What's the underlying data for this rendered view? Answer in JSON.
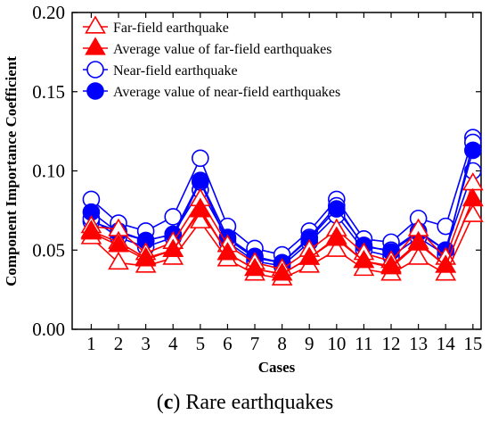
{
  "caption": {
    "letter": "c",
    "text": " Rare earthquakes"
  },
  "chart_data": {
    "type": "line",
    "xlabel": "Cases",
    "ylabel": "Component Importance Coefficient",
    "x": [
      1,
      2,
      3,
      4,
      5,
      6,
      7,
      8,
      9,
      10,
      11,
      12,
      13,
      14,
      15
    ],
    "xlim": [
      0.3,
      15.3
    ],
    "ylim": [
      0.0,
      0.2
    ],
    "yticks": [
      "0.00",
      "0.05",
      "0.10",
      "0.15",
      "0.20"
    ],
    "grid": false,
    "legend_position": "top-left",
    "legend": [
      {
        "label": "Far-field earthquake",
        "color": "#ff0000",
        "marker": "triangle-open"
      },
      {
        "label": "Average value of far-field earthquakes",
        "color": "#ff0000",
        "marker": "triangle-filled"
      },
      {
        "label": "Near-field earthquake",
        "color": "#0000ff",
        "marker": "circle-open"
      },
      {
        "label": "Average value of near-field earthquakes",
        "color": "#0000ff",
        "marker": "circle-filled"
      }
    ],
    "series": [
      {
        "group": "far",
        "kind": "individual",
        "color": "#ff0000",
        "marker": "triangle-open",
        "values": [
          0.065,
          0.063,
          0.048,
          0.055,
          0.082,
          0.053,
          0.042,
          0.038,
          0.05,
          0.063,
          0.048,
          0.043,
          0.063,
          0.045,
          0.092
        ]
      },
      {
        "group": "far",
        "kind": "individual",
        "color": "#ff0000",
        "marker": "triangle-open",
        "values": [
          0.058,
          0.042,
          0.04,
          0.045,
          0.068,
          0.044,
          0.035,
          0.032,
          0.04,
          0.05,
          0.038,
          0.035,
          0.045,
          0.035,
          0.072
        ]
      },
      {
        "group": "far",
        "kind": "individual",
        "color": "#ff0000",
        "marker": "triangle-open",
        "values": [
          0.062,
          0.055,
          0.045,
          0.05,
          0.076,
          0.048,
          0.038,
          0.035,
          0.045,
          0.058,
          0.043,
          0.04,
          0.055,
          0.04,
          0.082
        ]
      },
      {
        "group": "far",
        "kind": "average",
        "color": "#ff0000",
        "marker": "triangle-filled",
        "values": [
          0.061,
          0.053,
          0.044,
          0.05,
          0.075,
          0.048,
          0.038,
          0.035,
          0.045,
          0.057,
          0.043,
          0.039,
          0.054,
          0.04,
          0.082
        ]
      },
      {
        "group": "near",
        "kind": "individual",
        "color": "#0000ff",
        "marker": "circle-open",
        "values": [
          0.082,
          0.067,
          0.062,
          0.071,
          0.108,
          0.065,
          0.051,
          0.047,
          0.062,
          0.082,
          0.057,
          0.055,
          0.07,
          0.065,
          0.121
        ]
      },
      {
        "group": "near",
        "kind": "individual",
        "color": "#0000ff",
        "marker": "circle-open",
        "values": [
          0.068,
          0.062,
          0.056,
          0.06,
          0.088,
          0.057,
          0.045,
          0.042,
          0.058,
          0.078,
          0.052,
          0.05,
          0.062,
          0.05,
          0.1
        ]
      },
      {
        "group": "near",
        "kind": "individual",
        "color": "#0000ff",
        "marker": "circle-open",
        "values": [
          0.07,
          0.058,
          0.052,
          0.058,
          0.093,
          0.055,
          0.043,
          0.04,
          0.055,
          0.072,
          0.05,
          0.046,
          0.058,
          0.047,
          0.118
        ]
      },
      {
        "group": "near",
        "kind": "average",
        "color": "#0000ff",
        "marker": "circle-filled",
        "values": [
          0.074,
          0.061,
          0.056,
          0.06,
          0.094,
          0.058,
          0.046,
          0.042,
          0.057,
          0.076,
          0.053,
          0.049,
          0.061,
          0.05,
          0.113
        ]
      }
    ]
  }
}
